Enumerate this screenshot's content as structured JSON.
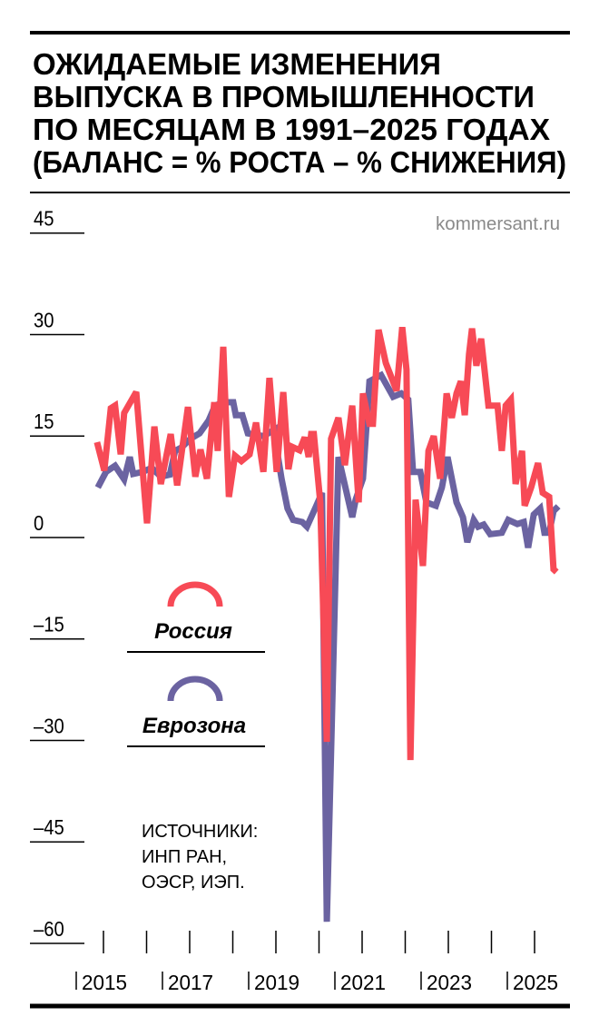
{
  "chart_data": {
    "type": "line",
    "title": [
      "ОЖИДАЕМЫЕ ИЗМЕНЕНИЯ",
      "ВЫПУСКА В ПРОМЫШЛЕННОСТИ",
      "ПО МЕСЯЦАМ В 1991–2025 ГОДАХ",
      "(БАЛАНС = % РОСТА – % СНИЖЕНИЯ)"
    ],
    "source_label": "kommersant.ru",
    "sources": [
      "ИСТОЧНИКИ:",
      "ИНП РАН,",
      "ОЭСР, ИЭП."
    ],
    "xlabel": "",
    "ylabel": "",
    "ylim": [
      -60,
      45
    ],
    "xlim": [
      2014.8,
      2025.6
    ],
    "y_ticks": [
      45,
      30,
      15,
      0,
      -15,
      -30,
      -45,
      -60
    ],
    "y_tick_labels": [
      "45",
      "30",
      "15",
      "0",
      "–15",
      "–30",
      "–45",
      "–60"
    ],
    "x_ticks": [
      2015,
      2016,
      2017,
      2018,
      2019,
      2020,
      2021,
      2022,
      2023,
      2024,
      2025
    ],
    "x_tick_labels": [
      {
        "year": 2015,
        "label": "2015"
      },
      {
        "year": 2017,
        "label": "2017"
      },
      {
        "year": 2019,
        "label": "2019"
      },
      {
        "year": 2021,
        "label": "2021"
      },
      {
        "year": 2023,
        "label": "2023"
      },
      {
        "year": 2025,
        "label": "2025"
      }
    ],
    "grid": false,
    "legend_position": "left",
    "series": [
      {
        "name": "Россия",
        "color": "#f74a56",
        "points": [
          [
            2014.85,
            14.1
          ],
          [
            2015.02,
            9.9
          ],
          [
            2015.17,
            19.1
          ],
          [
            2015.27,
            19.5
          ],
          [
            2015.4,
            12.3
          ],
          [
            2015.48,
            18.4
          ],
          [
            2015.76,
            21.5
          ],
          [
            2016.01,
            2.1
          ],
          [
            2016.18,
            16.4
          ],
          [
            2016.33,
            7.9
          ],
          [
            2016.56,
            15.3
          ],
          [
            2016.71,
            7.7
          ],
          [
            2016.96,
            19.3
          ],
          [
            2017.13,
            9.0
          ],
          [
            2017.25,
            13.0
          ],
          [
            2017.4,
            8.7
          ],
          [
            2017.57,
            20.0
          ],
          [
            2017.65,
            12.8
          ],
          [
            2017.78,
            28.2
          ],
          [
            2017.91,
            6.0
          ],
          [
            2018.05,
            12.1
          ],
          [
            2018.2,
            11.3
          ],
          [
            2018.39,
            12.3
          ],
          [
            2018.54,
            17.0
          ],
          [
            2018.71,
            9.7
          ],
          [
            2018.85,
            23.6
          ],
          [
            2019.02,
            9.7
          ],
          [
            2019.17,
            21.5
          ],
          [
            2019.29,
            10.1
          ],
          [
            2019.38,
            13.4
          ],
          [
            2019.55,
            12.9
          ],
          [
            2019.67,
            14.8
          ],
          [
            2019.76,
            11.9
          ],
          [
            2019.82,
            15.3
          ],
          [
            2019.88,
            15.3
          ],
          [
            2020.03,
            5.2
          ],
          [
            2020.18,
            -30.2
          ],
          [
            2020.28,
            14.6
          ],
          [
            2020.45,
            17.7
          ],
          [
            2020.6,
            10.7
          ],
          [
            2020.77,
            19.5
          ],
          [
            2020.92,
            5.2
          ],
          [
            2021.02,
            21.3
          ],
          [
            2021.17,
            16.8
          ],
          [
            2021.25,
            16.8
          ],
          [
            2021.38,
            30.7
          ],
          [
            2021.55,
            25.8
          ],
          [
            2021.8,
            21.7
          ],
          [
            2021.93,
            31.1
          ],
          [
            2022.03,
            24.8
          ],
          [
            2022.12,
            -32.9
          ],
          [
            2022.24,
            5.6
          ],
          [
            2022.41,
            -4.2
          ],
          [
            2022.54,
            12.8
          ],
          [
            2022.66,
            15.0
          ],
          [
            2022.81,
            8.7
          ],
          [
            2022.96,
            21.3
          ],
          [
            2023.08,
            17.7
          ],
          [
            2023.19,
            21.3
          ],
          [
            2023.29,
            23.1
          ],
          [
            2023.38,
            18.1
          ],
          [
            2023.48,
            27.1
          ],
          [
            2023.55,
            30.9
          ],
          [
            2023.65,
            25.4
          ],
          [
            2023.76,
            29.4
          ],
          [
            2023.93,
            19.5
          ],
          [
            2024.14,
            19.5
          ],
          [
            2024.24,
            12.8
          ],
          [
            2024.33,
            19.5
          ],
          [
            2024.45,
            20.4
          ],
          [
            2024.56,
            7.9
          ],
          [
            2024.71,
            12.8
          ],
          [
            2024.77,
            4.7
          ],
          [
            2024.92,
            7.4
          ],
          [
            2025.08,
            11.0
          ],
          [
            2025.19,
            6.6
          ],
          [
            2025.34,
            6.0
          ],
          [
            2025.44,
            -4.7
          ],
          [
            2025.51,
            -5.1
          ]
        ]
      },
      {
        "name": "Еврозона",
        "color": "#6b63a1",
        "points": [
          [
            2014.87,
            7.4
          ],
          [
            2015.06,
            9.7
          ],
          [
            2015.27,
            10.6
          ],
          [
            2015.48,
            8.6
          ],
          [
            2015.61,
            11.9
          ],
          [
            2015.69,
            9.4
          ],
          [
            2015.91,
            9.7
          ],
          [
            2016.12,
            10.3
          ],
          [
            2016.33,
            9.0
          ],
          [
            2016.54,
            9.3
          ],
          [
            2016.66,
            12.8
          ],
          [
            2016.81,
            13.3
          ],
          [
            2017.02,
            14.6
          ],
          [
            2017.23,
            15.4
          ],
          [
            2017.44,
            17.3
          ],
          [
            2017.59,
            19.5
          ],
          [
            2017.8,
            20.0
          ],
          [
            2018.01,
            20.0
          ],
          [
            2018.07,
            18.1
          ],
          [
            2018.22,
            18.1
          ],
          [
            2018.35,
            15.4
          ],
          [
            2018.71,
            15.0
          ],
          [
            2018.98,
            16.0
          ],
          [
            2019.04,
            12.3
          ],
          [
            2019.13,
            8.7
          ],
          [
            2019.27,
            4.3
          ],
          [
            2019.4,
            2.6
          ],
          [
            2019.61,
            2.3
          ],
          [
            2019.72,
            1.6
          ],
          [
            2019.91,
            4.3
          ],
          [
            2020.07,
            6.6
          ],
          [
            2020.18,
            -56.8
          ],
          [
            2020.45,
            11.9
          ],
          [
            2020.77,
            3.0
          ],
          [
            2020.85,
            5.6
          ],
          [
            2021.02,
            8.7
          ],
          [
            2021.17,
            23.1
          ],
          [
            2021.44,
            24.0
          ],
          [
            2021.72,
            20.8
          ],
          [
            2021.91,
            21.3
          ],
          [
            2022.07,
            20.4
          ],
          [
            2022.18,
            9.7
          ],
          [
            2022.35,
            9.7
          ],
          [
            2022.49,
            5.2
          ],
          [
            2022.71,
            4.7
          ],
          [
            2022.85,
            7.4
          ],
          [
            2022.98,
            11.9
          ],
          [
            2023.19,
            5.2
          ],
          [
            2023.34,
            3.0
          ],
          [
            2023.44,
            -0.7
          ],
          [
            2023.59,
            2.6
          ],
          [
            2023.69,
            1.6
          ],
          [
            2023.82,
            1.9
          ],
          [
            2023.97,
            0.5
          ],
          [
            2024.24,
            0.7
          ],
          [
            2024.39,
            2.6
          ],
          [
            2024.6,
            2.0
          ],
          [
            2024.75,
            2.3
          ],
          [
            2024.85,
            -1.5
          ],
          [
            2024.98,
            3.4
          ],
          [
            2025.13,
            4.3
          ],
          [
            2025.23,
            0.7
          ],
          [
            2025.34,
            0.7
          ],
          [
            2025.44,
            3.9
          ],
          [
            2025.55,
            4.6
          ]
        ]
      }
    ]
  }
}
